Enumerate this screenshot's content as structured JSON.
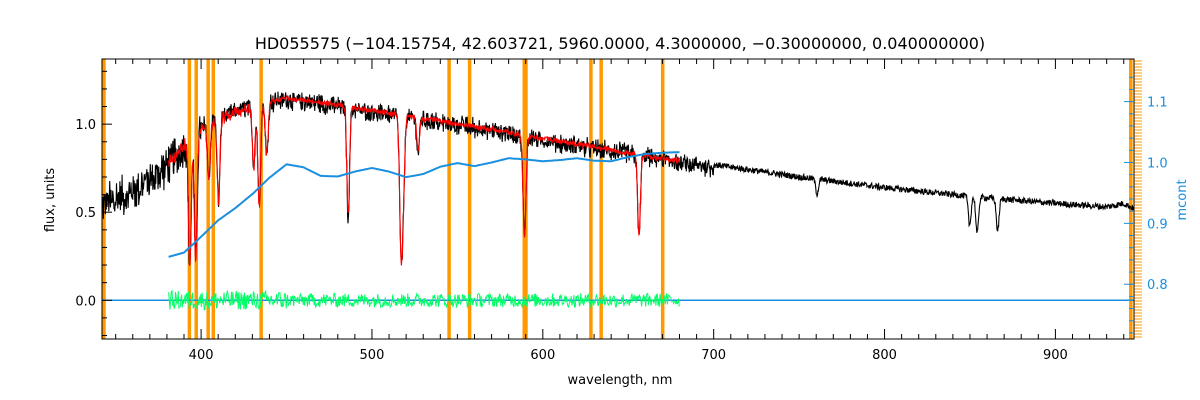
{
  "chart_data": {
    "type": "line",
    "title": "HD055575   (−104.15754, 42.603721, 5960.0000, 4.3000000, −0.30000000, 0.040000000)",
    "xlabel": "wavelength, nm",
    "ylabel": "flux, units",
    "ylabel_right": "mcont",
    "xlim": [
      342,
      946
    ],
    "ylim": [
      -0.22,
      1.37
    ],
    "ylim_right": [
      0.71,
      1.17
    ],
    "x_ticks": [
      400,
      500,
      600,
      700,
      800,
      900
    ],
    "y_ticks": [
      0.0,
      0.5,
      1.0
    ],
    "y_ticks_right": [
      0.8,
      0.9,
      1.0,
      1.1
    ],
    "colors": {
      "observed": "#000000",
      "model": "#ff0000",
      "residual": "#00ff66",
      "continuum": "#1a8fe0",
      "masks": "#ff9900"
    },
    "mask_lines": [
      343,
      393,
      397,
      404,
      407,
      435,
      545,
      557,
      589,
      590,
      628,
      634,
      670,
      944
    ],
    "absorption_lines": [
      {
        "x": 393.4,
        "depth": 0.75
      },
      {
        "x": 396.8,
        "depth": 0.75
      },
      {
        "x": 404.5,
        "depth": 0.3
      },
      {
        "x": 410.2,
        "depth": 0.45
      },
      {
        "x": 430.8,
        "depth": 0.3
      },
      {
        "x": 434.0,
        "depth": 0.5
      },
      {
        "x": 438.4,
        "depth": 0.25
      },
      {
        "x": 486.1,
        "depth": 0.55
      },
      {
        "x": 516.7,
        "depth": 0.35
      },
      {
        "x": 517.3,
        "depth": 0.4
      },
      {
        "x": 518.4,
        "depth": 0.35
      },
      {
        "x": 527.0,
        "depth": 0.18
      },
      {
        "x": 589.0,
        "depth": 0.35
      },
      {
        "x": 589.6,
        "depth": 0.3
      },
      {
        "x": 656.3,
        "depth": 0.55
      },
      {
        "x": 760.5,
        "depth": 0.12
      },
      {
        "x": 849.8,
        "depth": 0.28
      },
      {
        "x": 854.2,
        "depth": 0.36
      },
      {
        "x": 866.2,
        "depth": 0.32
      }
    ],
    "observed_continuum": [
      [
        342,
        0.58
      ],
      [
        360,
        0.65
      ],
      [
        380,
        0.8
      ],
      [
        395,
        0.96
      ],
      [
        410,
        1.06
      ],
      [
        430,
        1.12
      ],
      [
        450,
        1.16
      ],
      [
        480,
        1.12
      ],
      [
        520,
        1.06
      ],
      [
        560,
        1.0
      ],
      [
        600,
        0.93
      ],
      [
        650,
        0.85
      ],
      [
        700,
        0.77
      ],
      [
        750,
        0.7
      ],
      [
        800,
        0.64
      ],
      [
        850,
        0.59
      ],
      [
        900,
        0.55
      ],
      [
        930,
        0.53
      ],
      [
        940,
        0.55
      ],
      [
        946,
        0.52
      ]
    ],
    "model_range": [
      381,
      680
    ],
    "residual_range": [
      381,
      680
    ],
    "residual_amplitude": 0.05,
    "continuum_curve": [
      [
        381,
        0.845
      ],
      [
        390,
        0.852
      ],
      [
        400,
        0.878
      ],
      [
        410,
        0.905
      ],
      [
        420,
        0.925
      ],
      [
        430,
        0.948
      ],
      [
        440,
        0.975
      ],
      [
        450,
        0.997
      ],
      [
        460,
        0.992
      ],
      [
        470,
        0.978
      ],
      [
        480,
        0.977
      ],
      [
        490,
        0.985
      ],
      [
        500,
        0.991
      ],
      [
        510,
        0.985
      ],
      [
        520,
        0.976
      ],
      [
        530,
        0.981
      ],
      [
        540,
        0.993
      ],
      [
        550,
        0.999
      ],
      [
        560,
        0.994
      ],
      [
        570,
        1.0
      ],
      [
        580,
        1.007
      ],
      [
        590,
        1.005
      ],
      [
        600,
        1.002
      ],
      [
        610,
        1.004
      ],
      [
        620,
        1.007
      ],
      [
        630,
        1.003
      ],
      [
        640,
        1.002
      ],
      [
        650,
        1.009
      ],
      [
        660,
        1.014
      ],
      [
        670,
        1.016
      ],
      [
        680,
        1.017
      ]
    ],
    "series": [
      {
        "name": "observed",
        "range": [
          342,
          946
        ]
      },
      {
        "name": "model",
        "range": [
          381,
          680
        ]
      },
      {
        "name": "residual",
        "range": [
          381,
          680
        ]
      },
      {
        "name": "continuum",
        "range": [
          381,
          680
        ]
      }
    ]
  }
}
